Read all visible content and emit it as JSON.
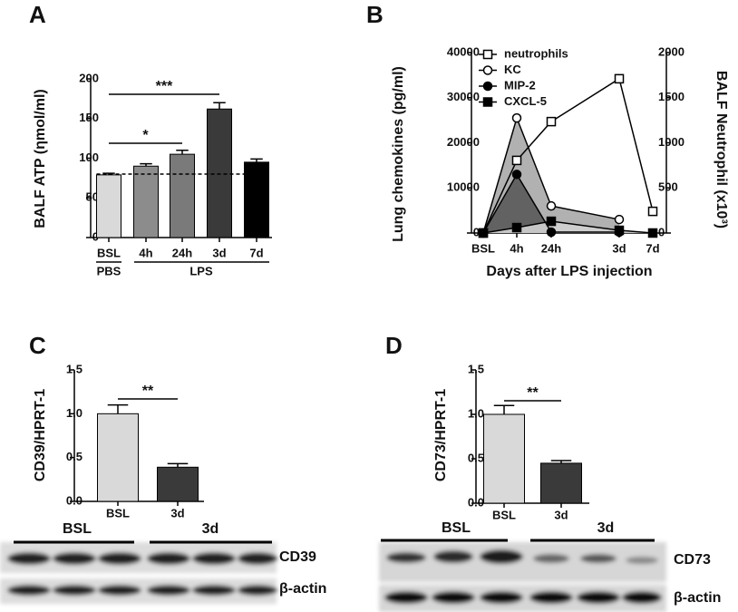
{
  "chart_data": [
    {
      "type": "bar",
      "panel": "A",
      "ylabel": "BALF ATP (ηmol/ml)",
      "categories": [
        "BSL",
        "4h",
        "24h",
        "3d",
        "7d"
      ],
      "values": [
        79,
        90,
        105,
        162,
        95
      ],
      "errors": [
        2,
        3,
        5,
        8,
        4
      ],
      "colors": [
        "#d9d9d9",
        "#8c8c8c",
        "#7a7a7a",
        "#3a3a3a",
        "#000000"
      ],
      "ylim": [
        0,
        200
      ],
      "yticks": [
        0,
        50,
        100,
        150,
        200
      ],
      "reference_line": 80,
      "groups": [
        "PBS",
        "LPS"
      ],
      "significance": [
        "*",
        "***"
      ]
    },
    {
      "type": "line",
      "panel": "B",
      "ylabel": "Lung chemokines (pg/ml)",
      "y2label": "BALF Neutrophil (x10³)",
      "xlabel": "Days after LPS injection",
      "categories": [
        "BSL",
        "4h",
        "24h",
        "3d",
        "7d"
      ],
      "ylim": [
        0,
        40000
      ],
      "yticks": [
        0,
        10000,
        20000,
        30000,
        40000
      ],
      "y2lim": [
        0,
        2000
      ],
      "y2ticks": [
        0,
        500,
        1000,
        1500,
        2000
      ],
      "series": [
        {
          "name": "neutrophils",
          "axis": "y2",
          "marker": "open-square",
          "color": "#000000",
          "values": [
            0,
            805,
            1235,
            1710,
            240
          ]
        },
        {
          "name": "KC",
          "marker": "open-circle",
          "color": "#000000",
          "fill": "#a9a9a9",
          "values": [
            0,
            25500,
            6000,
            3000,
            null
          ]
        },
        {
          "name": "MIP-2",
          "marker": "filled-circle",
          "color": "#000000",
          "fill": "#5a5a5a",
          "values": [
            0,
            13000,
            200,
            200,
            null
          ]
        },
        {
          "name": "CXCL-5",
          "marker": "filled-square",
          "color": "#000000",
          "fill": "#d2d2d2",
          "values": [
            0,
            1200,
            2600,
            600,
            0
          ]
        }
      ]
    },
    {
      "type": "bar",
      "panel": "C",
      "ylabel": "CD39/HPRT-1",
      "categories": [
        "BSL",
        "3d"
      ],
      "values": [
        1.0,
        0.39
      ],
      "errors": [
        0.1,
        0.04
      ],
      "colors": [
        "#d9d9d9",
        "#3a3a3a"
      ],
      "ylim": [
        0,
        1.5
      ],
      "yticks": [
        {
          "value": 0,
          "label": "0.0"
        },
        0.5,
        {
          "value": 1,
          "label": "1.0"
        },
        1.5
      ],
      "significance": [
        "**"
      ],
      "blot": {
        "groups": [
          "BSL",
          "3d"
        ],
        "rows": [
          "CD39",
          "β-actin"
        ]
      }
    },
    {
      "type": "bar",
      "panel": "D",
      "ylabel": "CD73/HPRT-1",
      "categories": [
        "BSL",
        "3d"
      ],
      "values": [
        1.0,
        0.45
      ],
      "errors": [
        0.1,
        0.03
      ],
      "colors": [
        "#d9d9d9",
        "#3a3a3a"
      ],
      "ylim": [
        0,
        1.5
      ],
      "yticks": [
        {
          "value": 0,
          "label": "0.0"
        },
        0.5,
        {
          "value": 1,
          "label": "1.0"
        },
        1.5
      ],
      "significance": [
        "**"
      ],
      "blot": {
        "groups": [
          "BSL",
          "3d"
        ],
        "rows": [
          "CD73",
          "β-actin"
        ]
      }
    }
  ]
}
